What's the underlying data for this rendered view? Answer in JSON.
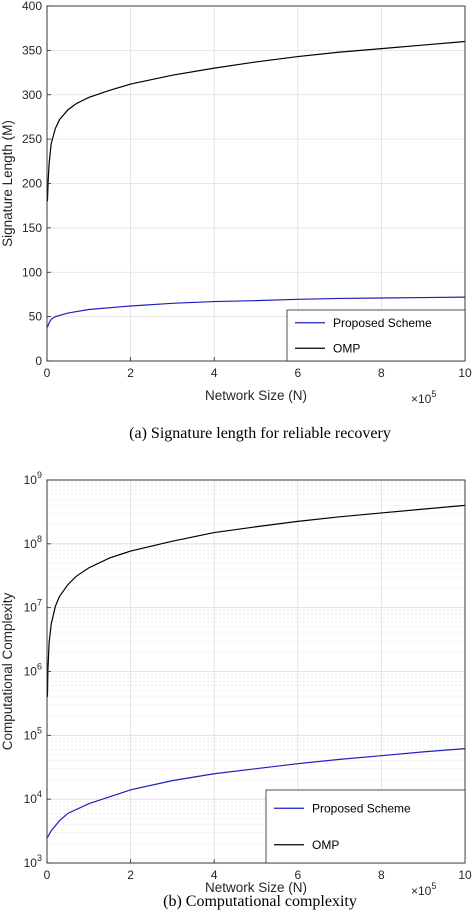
{
  "chart_data": [
    {
      "type": "line",
      "caption": "(a) Signature length for reliable recovery",
      "xlabel": "Network Size (N)",
      "ylabel": "Signature Length (M)",
      "x_multiplier": {
        "base": "×10",
        "exponent": "5"
      },
      "xlim": [
        0,
        10
      ],
      "ylim": [
        0,
        400
      ],
      "x_ticks": [
        0,
        2,
        4,
        6,
        8,
        10
      ],
      "y_ticks": [
        0,
        50,
        100,
        150,
        200,
        250,
        300,
        350,
        400
      ],
      "y_scale": "linear",
      "grid": true,
      "legend_position": "bottom-right",
      "series": [
        {
          "name": "Proposed Scheme",
          "color": "#1f1fbf",
          "points": [
            [
              0.01,
              38
            ],
            [
              0.05,
              43
            ],
            [
              0.1,
              47
            ],
            [
              0.2,
              50
            ],
            [
              0.5,
              54
            ],
            [
              1,
              58
            ],
            [
              2,
              62
            ],
            [
              3,
              65
            ],
            [
              4,
              67
            ],
            [
              5,
              68
            ],
            [
              6,
              69.5
            ],
            [
              7,
              70.5
            ],
            [
              8,
              71
            ],
            [
              9,
              71.5
            ],
            [
              10,
              72
            ]
          ]
        },
        {
          "name": "OMP",
          "color": "#000000",
          "points": [
            [
              0.01,
              180
            ],
            [
              0.03,
              205
            ],
            [
              0.05,
              222
            ],
            [
              0.1,
              245
            ],
            [
              0.2,
              262
            ],
            [
              0.3,
              272
            ],
            [
              0.5,
              283
            ],
            [
              0.7,
              290
            ],
            [
              1,
              297
            ],
            [
              1.5,
              305
            ],
            [
              2,
              312
            ],
            [
              3,
              322
            ],
            [
              4,
              330
            ],
            [
              5,
              337
            ],
            [
              6,
              343
            ],
            [
              7,
              348
            ],
            [
              8,
              352
            ],
            [
              9,
              356
            ],
            [
              10,
              360
            ]
          ]
        }
      ]
    },
    {
      "type": "line",
      "caption": "(b) Computational complexity",
      "xlabel": "Network Size (N)",
      "ylabel": "Computational Complexity",
      "x_multiplier": {
        "base": "×10",
        "exponent": "5"
      },
      "xlim": [
        0,
        10
      ],
      "ylim_exponents": [
        3,
        9
      ],
      "x_ticks": [
        0,
        2,
        4,
        6,
        8,
        10
      ],
      "y_ticks": [
        {
          "base": "10",
          "exp": "3",
          "value": 3
        },
        {
          "base": "10",
          "exp": "4",
          "value": 4
        },
        {
          "base": "10",
          "exp": "5",
          "value": 5
        },
        {
          "base": "10",
          "exp": "6",
          "value": 6
        },
        {
          "base": "10",
          "exp": "7",
          "value": 7
        },
        {
          "base": "10",
          "exp": "8",
          "value": 8
        },
        {
          "base": "10",
          "exp": "9",
          "value": 9
        }
      ],
      "y_scale": "log",
      "grid": true,
      "legend_position": "bottom-right",
      "series": [
        {
          "name": "Proposed Scheme",
          "color": "#1f1fbf",
          "points": [
            [
              0.01,
              2500
            ],
            [
              0.1,
              3200
            ],
            [
              0.3,
              4600
            ],
            [
              0.5,
              6000
            ],
            [
              1,
              8500
            ],
            [
              2,
              14000
            ],
            [
              3,
              19500
            ],
            [
              4,
              25000
            ],
            [
              5,
              30000
            ],
            [
              6,
              36000
            ],
            [
              7,
              42000
            ],
            [
              8,
              48000
            ],
            [
              9,
              55000
            ],
            [
              10,
              62000
            ]
          ]
        },
        {
          "name": "OMP",
          "color": "#000000",
          "points": [
            [
              0.01,
              400000
            ],
            [
              0.02,
              1000000
            ],
            [
              0.05,
              2800000
            ],
            [
              0.1,
              5500000
            ],
            [
              0.2,
              10500000
            ],
            [
              0.3,
              15000000
            ],
            [
              0.5,
              23000000
            ],
            [
              0.7,
              31000000
            ],
            [
              1,
              42000000
            ],
            [
              1.5,
              60000000
            ],
            [
              2,
              77000000
            ],
            [
              3,
              110000000
            ],
            [
              4,
              150000000
            ],
            [
              5,
              185000000
            ],
            [
              6,
              225000000
            ],
            [
              7,
              265000000
            ],
            [
              8,
              305000000
            ],
            [
              9,
              350000000
            ],
            [
              10,
              400000000
            ]
          ]
        }
      ]
    }
  ]
}
